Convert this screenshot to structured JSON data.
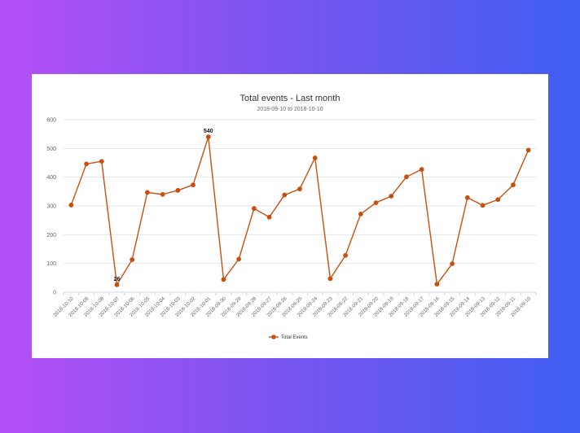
{
  "chart_data": {
    "type": "line",
    "title": "Total events - Last month",
    "subtitle": "2018-09-10 to 2018-10-10",
    "categories": [
      "2018-10-10",
      "2018-10-09",
      "2018-10-08",
      "2018-10-07",
      "2018-10-06",
      "2018-10-05",
      "2018-10-04",
      "2018-10-03",
      "2018-10-02",
      "2018-10-01",
      "2018-09-30",
      "2018-09-29",
      "2018-09-28",
      "2018-09-27",
      "2018-09-26",
      "2018-09-25",
      "2018-09-24",
      "2018-09-23",
      "2018-09-22",
      "2018-09-21",
      "2018-09-20",
      "2018-09-19",
      "2018-09-18",
      "2018-09-17",
      "2018-09-16",
      "2018-09-15",
      "2018-09-14",
      "2018-09-13",
      "2018-09-12",
      "2018-09-11",
      "2018-09-10"
    ],
    "series": [
      {
        "name": "Total Events",
        "color": "#c8500f",
        "values": [
          303,
          446,
          455,
          26,
          113,
          347,
          340,
          354,
          373,
          540,
          44,
          115,
          291,
          261,
          338,
          359,
          467,
          47,
          128,
          272,
          311,
          334,
          401,
          427,
          28,
          99,
          329,
          302,
          322,
          373,
          494
        ]
      }
    ],
    "data_labels": [
      {
        "index": 3,
        "text": "26"
      },
      {
        "index": 9,
        "text": "540"
      }
    ],
    "ylim": [
      0,
      600
    ],
    "yticks": [
      0,
      100,
      200,
      300,
      400,
      500,
      600
    ],
    "grid": true,
    "legend": "bottom-center"
  }
}
